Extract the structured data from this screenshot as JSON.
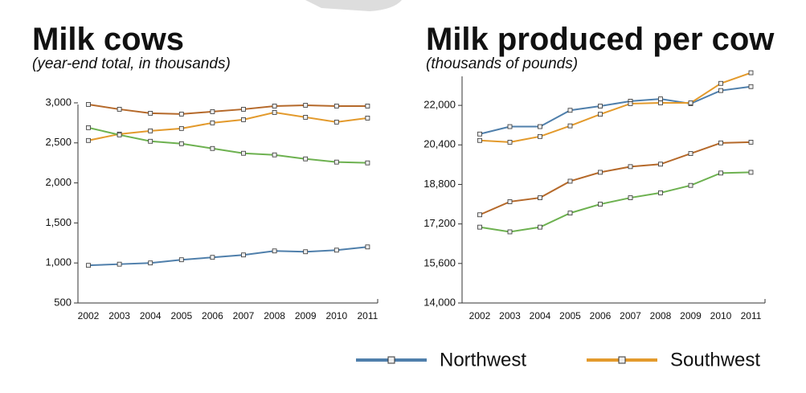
{
  "chart_data": [
    {
      "type": "line",
      "title": "Milk cows",
      "subtitle": "(year-end total, in thousands)",
      "categories": [
        "2002",
        "2003",
        "2004",
        "2005",
        "2006",
        "2007",
        "2008",
        "2009",
        "2010",
        "2011"
      ],
      "series": [
        {
          "name": "Northwest",
          "color": "#4f7fab",
          "values": [
            970,
            985,
            1000,
            1040,
            1070,
            1100,
            1150,
            1140,
            1160,
            1200
          ]
        },
        {
          "name": "Southwest",
          "color": "#e39a2c",
          "values": [
            2530,
            2610,
            2650,
            2680,
            2750,
            2790,
            2880,
            2820,
            2760,
            2810
          ]
        },
        {
          "color": "#b5692a",
          "values": [
            2980,
            2920,
            2870,
            2860,
            2890,
            2920,
            2960,
            2970,
            2960,
            2960
          ]
        },
        {
          "color": "#6db150",
          "values": [
            2690,
            2600,
            2520,
            2490,
            2430,
            2370,
            2350,
            2300,
            2260,
            2250
          ]
        }
      ],
      "ylim": [
        500,
        3080
      ],
      "yticks": [
        500,
        {
          "value": 1000,
          "label": "1,000"
        },
        {
          "value": 1500,
          "label": "1,500"
        },
        {
          "value": 2000,
          "label": "2,000"
        },
        {
          "value": 2500,
          "label": "2,500"
        },
        {
          "value": 3000,
          "label": "3,000"
        }
      ]
    },
    {
      "type": "line",
      "title": "Milk produced per cow",
      "subtitle": "(thousands of pounds)",
      "categories": [
        "2002",
        "2003",
        "2004",
        "2005",
        "2006",
        "2007",
        "2008",
        "2009",
        "2010",
        "2011"
      ],
      "series": [
        {
          "name": "Northwest",
          "color": "#4f7fab",
          "values": [
            20840,
            21140,
            21140,
            21800,
            21970,
            22170,
            22260,
            22070,
            22600,
            22760
          ]
        },
        {
          "name": "Southwest",
          "color": "#e39a2c",
          "values": [
            20580,
            20510,
            20740,
            21170,
            21640,
            22070,
            22100,
            22100,
            22890,
            23320
          ]
        },
        {
          "color": "#b5692a",
          "values": [
            17570,
            18100,
            18260,
            18930,
            19290,
            19520,
            19620,
            20050,
            20480,
            20510
          ]
        },
        {
          "color": "#6db150",
          "values": [
            17070,
            16880,
            17070,
            17640,
            18000,
            18260,
            18460,
            18760,
            19260,
            19290
          ]
        }
      ],
      "ylim": [
        14000,
        23500
      ],
      "yticks": [
        {
          "value": 14000,
          "label": "14,000"
        },
        {
          "value": 15600,
          "label": "15,600"
        },
        {
          "value": 17200,
          "label": "17,200"
        },
        {
          "value": 18800,
          "label": "18,800"
        },
        {
          "value": 20400,
          "label": "20,400"
        },
        {
          "value": 22000,
          "label": "22,000"
        }
      ]
    }
  ]
}
